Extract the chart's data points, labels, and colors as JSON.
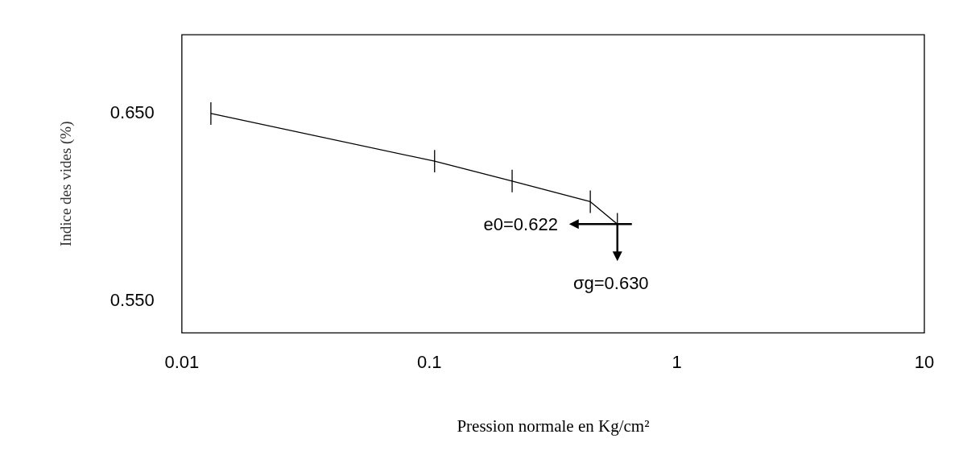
{
  "chart_data": {
    "type": "line",
    "xlabel": "Pression normale en Kg/cm²",
    "ylabel": "Indice des vides (%)",
    "x": [
      0.0131,
      0.105,
      0.216,
      0.447,
      0.575
    ],
    "series": [
      {
        "color": "#000000",
        "values": [
          0.65,
          0.6246,
          0.614,
          0.603,
          0.591
        ],
        "errors": [
          0.006,
          0.006,
          0.006,
          0.006,
          0.006
        ]
      }
    ],
    "log": "x",
    "xlim": [
      0.01,
      10
    ],
    "xticks": [
      0.01,
      0.1,
      1,
      10
    ],
    "ylim": [
      0.533,
      0.692
    ],
    "yticks": [
      {
        "value": 0.65,
        "label": "0.650"
      },
      {
        "value": 0.55,
        "label": "0.550"
      }
    ],
    "grid": false,
    "legend": false,
    "marker": "none",
    "line_style": "solid",
    "annotations": [
      "e0=0.622",
      {
        "text": "σg=0.630",
        "x": 0.575,
        "y": 0.591
      }
    ]
  }
}
